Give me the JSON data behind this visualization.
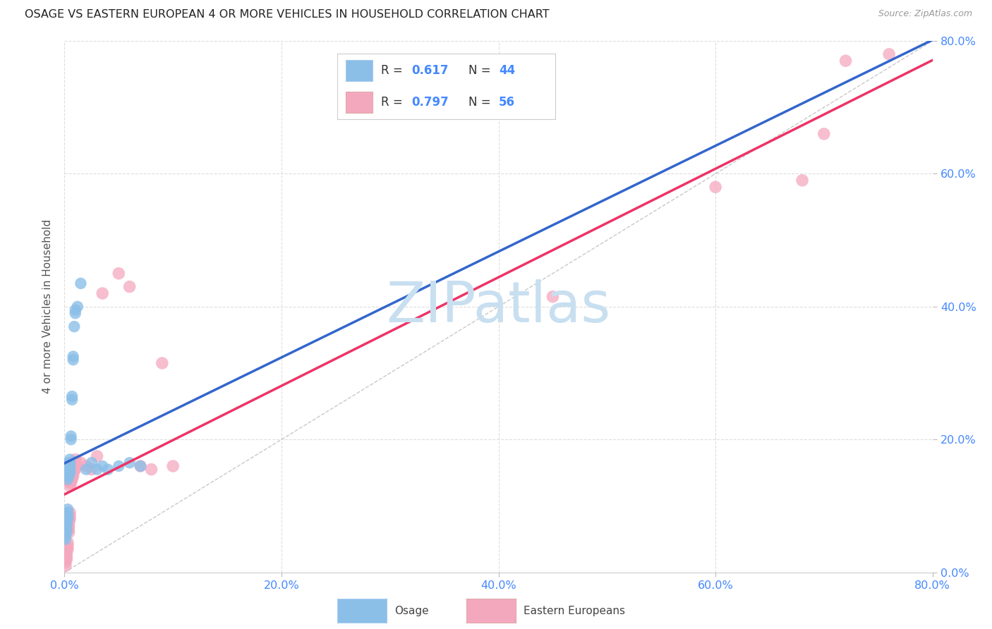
{
  "title": "OSAGE VS EASTERN EUROPEAN 4 OR MORE VEHICLES IN HOUSEHOLD CORRELATION CHART",
  "source": "Source: ZipAtlas.com",
  "ylabel": "4 or more Vehicles in Household",
  "xlim": [
    0.0,
    0.8
  ],
  "ylim": [
    0.0,
    0.8
  ],
  "xtick_vals": [
    0.0,
    0.2,
    0.4,
    0.6,
    0.8
  ],
  "ytick_vals": [
    0.0,
    0.2,
    0.4,
    0.6,
    0.8
  ],
  "xtick_labels": [
    "0.0%",
    "20.0%",
    "40.0%",
    "60.0%",
    "80.0%"
  ],
  "ytick_labels_right": [
    "0.0%",
    "20.0%",
    "40.0%",
    "60.0%",
    "80.0%"
  ],
  "osage_color": "#8BBFE8",
  "eastern_color": "#F4A8BE",
  "osage_line_color": "#3366CC",
  "eastern_line_color": "#EE3366",
  "diagonal_color": "#BBBBBB",
  "watermark_color": "#C8DFF0",
  "legend_R_osage": "0.617",
  "legend_N_osage": "44",
  "legend_R_eastern": "0.797",
  "legend_N_eastern": "56",
  "osage_scatter": [
    [
      0.001,
      0.05
    ],
    [
      0.001,
      0.055
    ],
    [
      0.001,
      0.06
    ],
    [
      0.001,
      0.065
    ],
    [
      0.002,
      0.06
    ],
    [
      0.002,
      0.065
    ],
    [
      0.002,
      0.07
    ],
    [
      0.002,
      0.075
    ],
    [
      0.002,
      0.08
    ],
    [
      0.003,
      0.08
    ],
    [
      0.003,
      0.085
    ],
    [
      0.003,
      0.09
    ],
    [
      0.003,
      0.095
    ],
    [
      0.003,
      0.14
    ],
    [
      0.003,
      0.145
    ],
    [
      0.004,
      0.145
    ],
    [
      0.004,
      0.15
    ],
    [
      0.004,
      0.155
    ],
    [
      0.004,
      0.16
    ],
    [
      0.004,
      0.165
    ],
    [
      0.005,
      0.15
    ],
    [
      0.005,
      0.155
    ],
    [
      0.005,
      0.16
    ],
    [
      0.005,
      0.165
    ],
    [
      0.005,
      0.17
    ],
    [
      0.006,
      0.2
    ],
    [
      0.006,
      0.205
    ],
    [
      0.007,
      0.26
    ],
    [
      0.007,
      0.265
    ],
    [
      0.008,
      0.32
    ],
    [
      0.008,
      0.325
    ],
    [
      0.009,
      0.37
    ],
    [
      0.01,
      0.39
    ],
    [
      0.01,
      0.395
    ],
    [
      0.012,
      0.4
    ],
    [
      0.015,
      0.435
    ],
    [
      0.02,
      0.155
    ],
    [
      0.025,
      0.165
    ],
    [
      0.03,
      0.155
    ],
    [
      0.035,
      0.16
    ],
    [
      0.04,
      0.155
    ],
    [
      0.05,
      0.16
    ],
    [
      0.06,
      0.165
    ],
    [
      0.07,
      0.16
    ]
  ],
  "eastern_scatter": [
    [
      0.001,
      0.01
    ],
    [
      0.001,
      0.015
    ],
    [
      0.001,
      0.02
    ],
    [
      0.002,
      0.02
    ],
    [
      0.002,
      0.025
    ],
    [
      0.002,
      0.03
    ],
    [
      0.002,
      0.035
    ],
    [
      0.003,
      0.035
    ],
    [
      0.003,
      0.04
    ],
    [
      0.003,
      0.045
    ],
    [
      0.003,
      0.065
    ],
    [
      0.003,
      0.07
    ],
    [
      0.004,
      0.06
    ],
    [
      0.004,
      0.065
    ],
    [
      0.004,
      0.07
    ],
    [
      0.004,
      0.075
    ],
    [
      0.004,
      0.08
    ],
    [
      0.005,
      0.08
    ],
    [
      0.005,
      0.085
    ],
    [
      0.005,
      0.09
    ],
    [
      0.005,
      0.13
    ],
    [
      0.005,
      0.135
    ],
    [
      0.006,
      0.135
    ],
    [
      0.006,
      0.14
    ],
    [
      0.006,
      0.145
    ],
    [
      0.006,
      0.15
    ],
    [
      0.007,
      0.14
    ],
    [
      0.007,
      0.145
    ],
    [
      0.007,
      0.155
    ],
    [
      0.007,
      0.16
    ],
    [
      0.008,
      0.145
    ],
    [
      0.008,
      0.15
    ],
    [
      0.008,
      0.155
    ],
    [
      0.008,
      0.16
    ],
    [
      0.009,
      0.155
    ],
    [
      0.009,
      0.16
    ],
    [
      0.01,
      0.155
    ],
    [
      0.01,
      0.165
    ],
    [
      0.01,
      0.17
    ],
    [
      0.015,
      0.165
    ],
    [
      0.02,
      0.16
    ],
    [
      0.025,
      0.155
    ],
    [
      0.03,
      0.175
    ],
    [
      0.035,
      0.42
    ],
    [
      0.05,
      0.45
    ],
    [
      0.06,
      0.43
    ],
    [
      0.07,
      0.16
    ],
    [
      0.08,
      0.155
    ],
    [
      0.09,
      0.315
    ],
    [
      0.1,
      0.16
    ],
    [
      0.45,
      0.415
    ],
    [
      0.6,
      0.58
    ],
    [
      0.68,
      0.59
    ],
    [
      0.7,
      0.66
    ],
    [
      0.72,
      0.77
    ],
    [
      0.76,
      0.78
    ]
  ],
  "background_color": "#FFFFFF",
  "grid_color": "#DDDDDD",
  "osage_line_params": [
    6.5,
    0.02
  ],
  "eastern_line_params": [
    1.02,
    -0.01
  ]
}
